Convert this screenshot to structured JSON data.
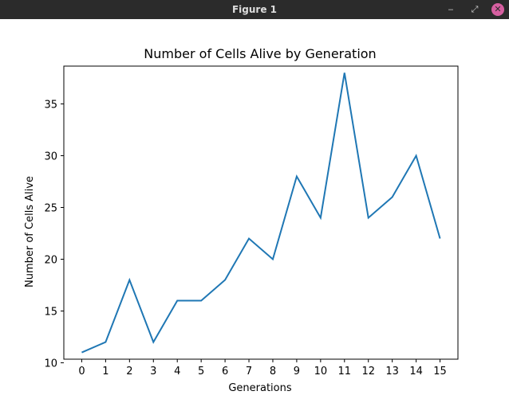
{
  "window": {
    "title": "Figure 1",
    "minimize_glyph": "‒",
    "maximize_glyph": "⤢",
    "close_glyph": "✕"
  },
  "colors": {
    "titlebar": "#2b2b2b",
    "close_button": "#d65fa0",
    "series_line": "#1f77b4"
  },
  "chart_data": {
    "type": "line",
    "title": "Number of Cells Alive by Generation",
    "xlabel": "Generations",
    "ylabel": "Number of Cells Alive",
    "x": [
      0,
      1,
      2,
      3,
      4,
      5,
      6,
      7,
      8,
      9,
      10,
      11,
      12,
      13,
      14,
      15
    ],
    "xticks": [
      "0",
      "1",
      "2",
      "3",
      "4",
      "5",
      "6",
      "7",
      "8",
      "9",
      "10",
      "11",
      "12",
      "13",
      "14",
      "15"
    ],
    "y": [
      11,
      12,
      18,
      12,
      16,
      16,
      18,
      22,
      20,
      28,
      24,
      38,
      24,
      26,
      30,
      22
    ],
    "yticks": [
      10,
      15,
      20,
      25,
      30,
      35
    ],
    "xlim": [
      -0.75,
      15.75
    ],
    "ylim": [
      10.35,
      38.65
    ],
    "grid": false,
    "legend": "none"
  }
}
